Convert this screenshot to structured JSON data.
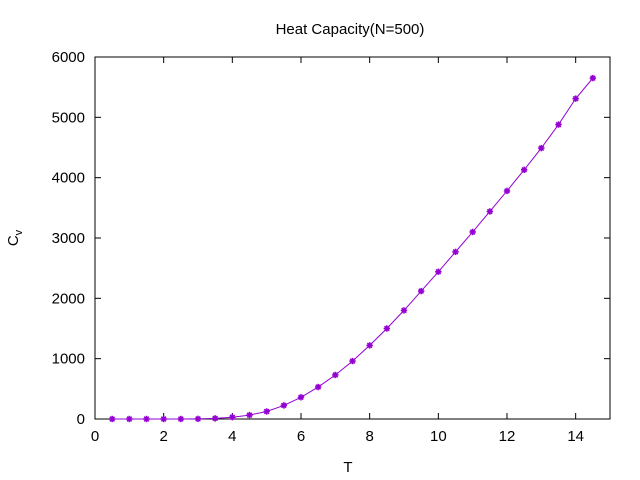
{
  "chart_data": {
    "type": "line",
    "title": "Heat Capacity(N=500)",
    "xlabel": "T",
    "ylabel_main": "C",
    "ylabel_sub": "v",
    "xlim": [
      0,
      15
    ],
    "ylim": [
      0,
      6000
    ],
    "xticks": [
      0,
      2,
      4,
      6,
      8,
      10,
      12,
      14
    ],
    "yticks": [
      0,
      1000,
      2000,
      3000,
      4000,
      5000,
      6000
    ],
    "grid": false,
    "legend": "none",
    "series": [
      {
        "color": "#9400d3",
        "marker": "asterisk",
        "x": [
          0.5,
          1.0,
          1.5,
          2.0,
          2.5,
          3.0,
          3.5,
          4.0,
          4.5,
          5.0,
          5.5,
          6.0,
          6.5,
          7.0,
          7.5,
          8.0,
          8.5,
          9.0,
          9.5,
          10.0,
          10.5,
          11.0,
          11.5,
          12.0,
          12.5,
          13.0,
          13.5,
          14.0,
          14.5
        ],
        "y": [
          0,
          0,
          0,
          0,
          0,
          2,
          10,
          30,
          65,
          125,
          225,
          360,
          530,
          730,
          960,
          1220,
          1500,
          1800,
          2120,
          2440,
          2770,
          3100,
          3440,
          3780,
          4130,
          4490,
          4880,
          5310,
          5650
        ]
      }
    ]
  }
}
